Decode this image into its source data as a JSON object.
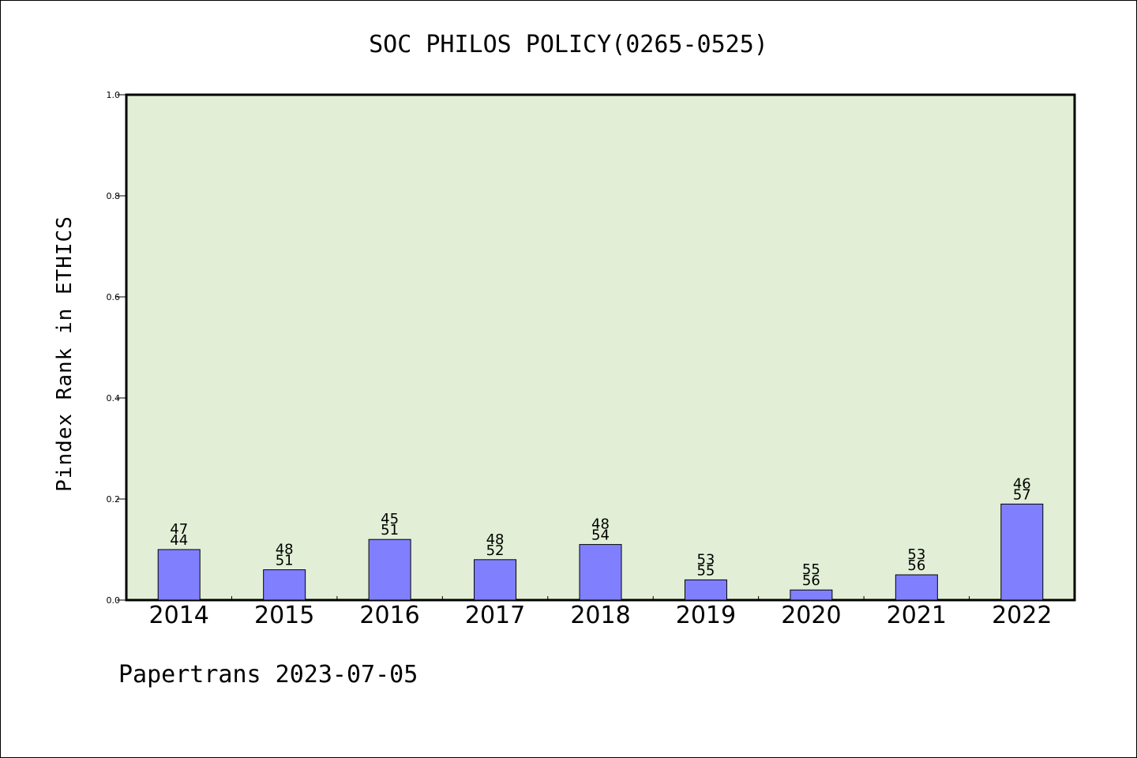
{
  "chart_data": {
    "type": "bar",
    "title": "SOC PHILOS POLICY(0265-0525)",
    "xlabel": "",
    "ylabel": "Pindex Rank in ETHICS",
    "categories": [
      "2014",
      "2015",
      "2016",
      "2017",
      "2018",
      "2019",
      "2020",
      "2021",
      "2022"
    ],
    "values": [
      0.1,
      0.06,
      0.12,
      0.08,
      0.11,
      0.04,
      0.02,
      0.05,
      0.19
    ],
    "data_labels_top": [
      "47",
      "48",
      "45",
      "48",
      "48",
      "53",
      "55",
      "53",
      "46"
    ],
    "data_labels_bottom": [
      "44",
      "51",
      "51",
      "52",
      "54",
      "55",
      "56",
      "56",
      "57"
    ],
    "ylim": [
      0,
      1.0
    ],
    "yticks": [
      "0.0",
      "0.2",
      "0.4",
      "0.6",
      "0.8",
      "1.0"
    ],
    "plot_background": "#e2efd6",
    "bar_color": "#8080ff",
    "grid": false,
    "legend": "none"
  },
  "footer": "Papertrans 2023-07-05"
}
